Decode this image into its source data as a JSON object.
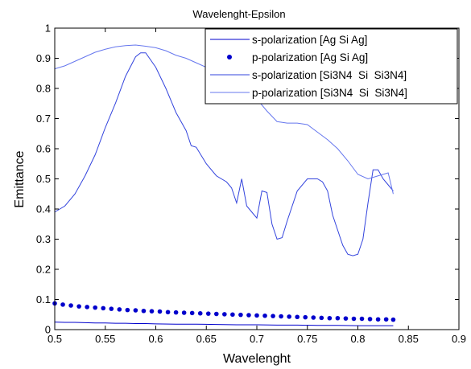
{
  "chart_data": {
    "type": "line",
    "title": "Wavelenght-Epsilon",
    "xlabel": "Wavelenght",
    "ylabel": "Emittance",
    "xlim": [
      0.5,
      0.9
    ],
    "ylim": [
      0,
      1
    ],
    "x_ticks": [
      "0.5",
      "0.55",
      "0.6",
      "0.65",
      "0.7",
      "0.75",
      "0.8",
      "0.85",
      "0.9"
    ],
    "y_ticks": [
      "0",
      "0.1",
      "0.2",
      "0.3",
      "0.4",
      "0.5",
      "0.6",
      "0.7",
      "0.8",
      "0.9",
      "1"
    ],
    "grid": false,
    "legend_position": "top-right",
    "series": [
      {
        "name": "s-polarization [Ag Si Ag]",
        "style": "line",
        "color": "#0000cc",
        "x": [
          0.5,
          0.51,
          0.52,
          0.53,
          0.54,
          0.55,
          0.56,
          0.57,
          0.58,
          0.59,
          0.6,
          0.62,
          0.64,
          0.66,
          0.68,
          0.7,
          0.72,
          0.74,
          0.76,
          0.78,
          0.8,
          0.82,
          0.835
        ],
        "y": [
          0.025,
          0.024,
          0.024,
          0.023,
          0.022,
          0.022,
          0.021,
          0.021,
          0.02,
          0.02,
          0.019,
          0.018,
          0.018,
          0.017,
          0.016,
          0.016,
          0.015,
          0.015,
          0.014,
          0.014,
          0.013,
          0.013,
          0.013
        ]
      },
      {
        "name": "p-polarization [Ag Si Ag]",
        "style": "markers",
        "color": "#0000cc",
        "x": [
          0.5,
          0.508,
          0.516,
          0.524,
          0.532,
          0.54,
          0.548,
          0.556,
          0.564,
          0.572,
          0.58,
          0.588,
          0.596,
          0.604,
          0.612,
          0.62,
          0.628,
          0.636,
          0.644,
          0.652,
          0.66,
          0.668,
          0.676,
          0.684,
          0.692,
          0.7,
          0.708,
          0.716,
          0.724,
          0.732,
          0.74,
          0.748,
          0.756,
          0.764,
          0.772,
          0.78,
          0.788,
          0.796,
          0.804,
          0.812,
          0.82,
          0.828,
          0.835
        ],
        "y": [
          0.087,
          0.083,
          0.08,
          0.077,
          0.075,
          0.073,
          0.071,
          0.069,
          0.067,
          0.065,
          0.064,
          0.062,
          0.061,
          0.06,
          0.058,
          0.057,
          0.056,
          0.055,
          0.054,
          0.053,
          0.052,
          0.051,
          0.05,
          0.049,
          0.048,
          0.047,
          0.046,
          0.045,
          0.044,
          0.043,
          0.042,
          0.041,
          0.04,
          0.039,
          0.038,
          0.038,
          0.037,
          0.036,
          0.036,
          0.035,
          0.034,
          0.034,
          0.033
        ]
      },
      {
        "name": "s-polarization [Si3N4  Si  Si3N4]",
        "style": "line",
        "color": "#3344dd",
        "x": [
          0.5,
          0.51,
          0.52,
          0.53,
          0.54,
          0.55,
          0.56,
          0.57,
          0.58,
          0.585,
          0.59,
          0.6,
          0.61,
          0.62,
          0.63,
          0.635,
          0.64,
          0.65,
          0.66,
          0.67,
          0.675,
          0.68,
          0.685,
          0.69,
          0.695,
          0.7,
          0.705,
          0.71,
          0.715,
          0.72,
          0.725,
          0.73,
          0.735,
          0.74,
          0.75,
          0.76,
          0.765,
          0.77,
          0.775,
          0.78,
          0.785,
          0.79,
          0.795,
          0.8,
          0.805,
          0.81,
          0.815,
          0.82,
          0.825,
          0.83,
          0.835
        ],
        "y": [
          0.39,
          0.41,
          0.45,
          0.51,
          0.58,
          0.67,
          0.75,
          0.84,
          0.905,
          0.918,
          0.918,
          0.87,
          0.8,
          0.72,
          0.66,
          0.61,
          0.605,
          0.55,
          0.51,
          0.49,
          0.47,
          0.42,
          0.5,
          0.41,
          0.39,
          0.37,
          0.46,
          0.455,
          0.35,
          0.3,
          0.305,
          0.36,
          0.41,
          0.46,
          0.5,
          0.5,
          0.49,
          0.46,
          0.38,
          0.33,
          0.28,
          0.25,
          0.245,
          0.25,
          0.3,
          0.42,
          0.53,
          0.53,
          0.5,
          0.48,
          0.46
        ]
      },
      {
        "name": "p-polarization [Si3N4  Si  Si3N4]",
        "style": "line",
        "color": "#6677ee",
        "x": [
          0.5,
          0.51,
          0.52,
          0.53,
          0.54,
          0.55,
          0.56,
          0.57,
          0.58,
          0.59,
          0.6,
          0.61,
          0.62,
          0.63,
          0.64,
          0.65,
          0.66,
          0.67,
          0.68,
          0.69,
          0.7,
          0.71,
          0.72,
          0.73,
          0.74,
          0.75,
          0.76,
          0.77,
          0.78,
          0.79,
          0.8,
          0.81,
          0.82,
          0.83,
          0.835
        ],
        "y": [
          0.865,
          0.875,
          0.89,
          0.905,
          0.92,
          0.93,
          0.938,
          0.942,
          0.944,
          0.94,
          0.935,
          0.925,
          0.91,
          0.9,
          0.885,
          0.87,
          0.855,
          0.835,
          0.815,
          0.79,
          0.765,
          0.725,
          0.69,
          0.685,
          0.685,
          0.68,
          0.655,
          0.63,
          0.6,
          0.56,
          0.515,
          0.5,
          0.51,
          0.52,
          0.45
        ]
      }
    ]
  }
}
